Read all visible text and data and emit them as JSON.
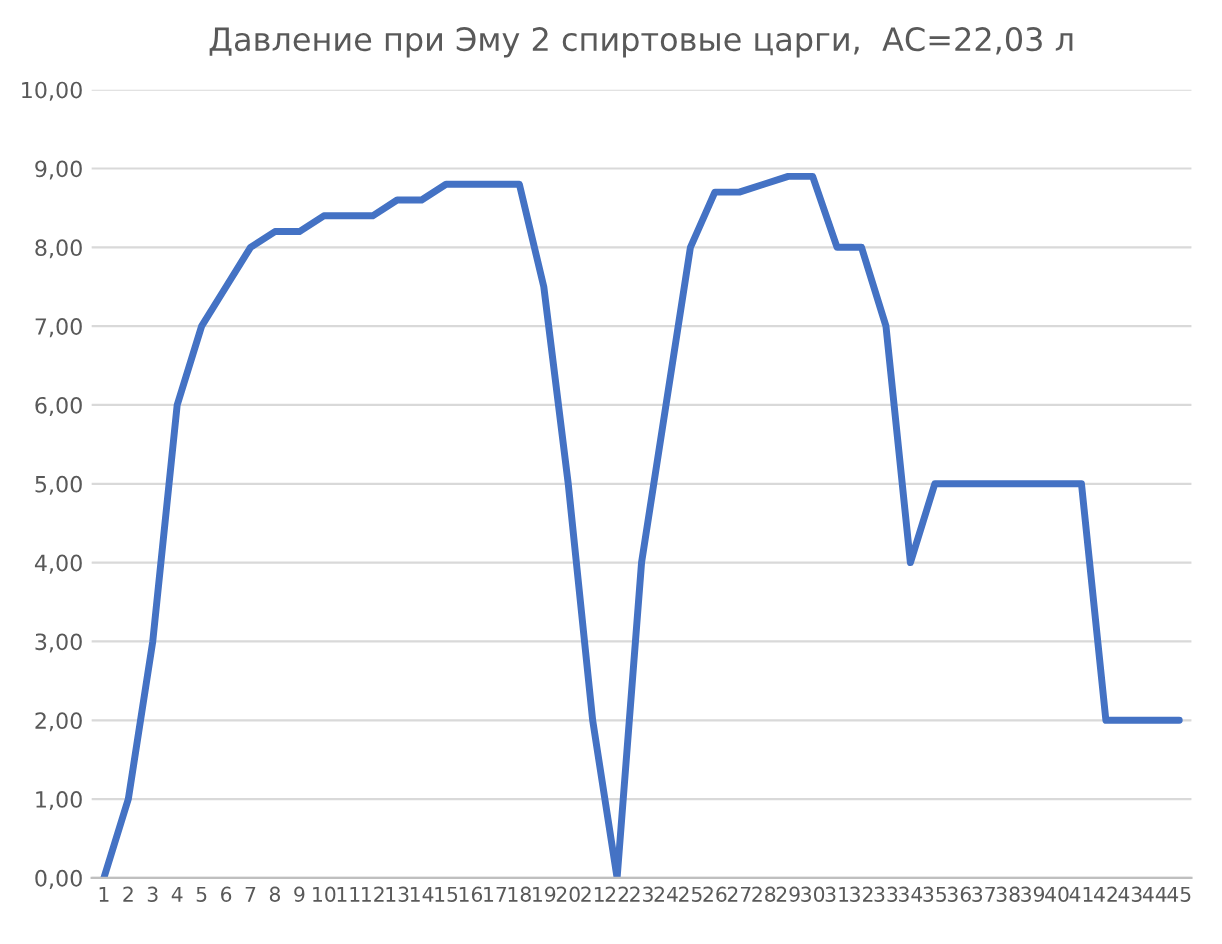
{
  "chart_data": {
    "type": "line",
    "title": "Давление при Эму 2 спиртовые царги,  АС=22,03 л",
    "categories": [
      "1",
      "2",
      "3",
      "4",
      "5",
      "6",
      "7",
      "8",
      "9",
      "10",
      "11",
      "12",
      "13",
      "14",
      "15",
      "16",
      "17",
      "18",
      "19",
      "20",
      "21",
      "22",
      "23",
      "24",
      "25",
      "26",
      "27",
      "28",
      "29",
      "30",
      "31",
      "32",
      "33",
      "34",
      "35",
      "36",
      "37",
      "38",
      "39",
      "40",
      "41",
      "42",
      "43",
      "44",
      "45"
    ],
    "series": [
      {
        "color": "#4472c4",
        "values": [
          0,
          1,
          3,
          6,
          7,
          7.5,
          8,
          8.2,
          8.2,
          8.4,
          8.4,
          8.4,
          8.6,
          8.6,
          8.8,
          8.8,
          8.8,
          8.8,
          7.5,
          5,
          2,
          0,
          4,
          6,
          8,
          8.7,
          8.7,
          8.8,
          8.9,
          8.9,
          8,
          8,
          7,
          4,
          5,
          5,
          5,
          5,
          5,
          5,
          5,
          2,
          2,
          2,
          2
        ]
      }
    ],
    "ylim": [
      0,
      10
    ],
    "yticks": [
      {
        "value": 0,
        "label": "0,00"
      },
      {
        "value": 1,
        "label": "1,00"
      },
      {
        "value": 2,
        "label": "2,00"
      },
      {
        "value": 3,
        "label": "3,00"
      },
      {
        "value": 4,
        "label": "4,00"
      },
      {
        "value": 5,
        "label": "5,00"
      },
      {
        "value": 6,
        "label": "6,00"
      },
      {
        "value": 7,
        "label": "7,00"
      },
      {
        "value": 8,
        "label": "8,00"
      },
      {
        "value": 9,
        "label": "9,00"
      },
      {
        "value": 10,
        "label": "10,00"
      }
    ],
    "grid": "y",
    "marker": "none",
    "line_style": "solid"
  }
}
